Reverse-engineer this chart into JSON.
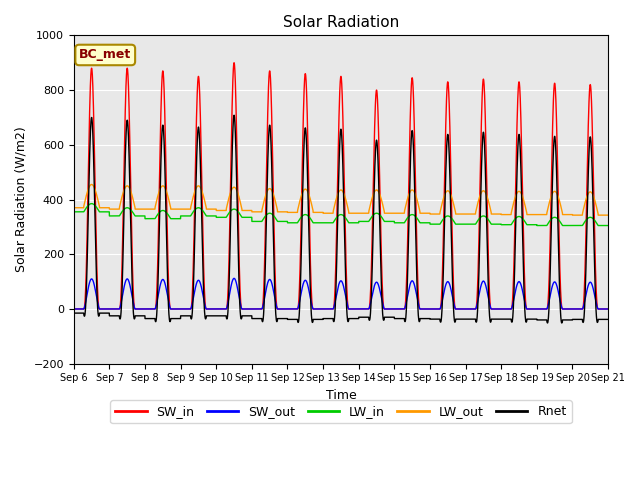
{
  "title": "Solar Radiation",
  "xlabel": "Time",
  "ylabel": "Solar Radiation (W/m2)",
  "ylim": [
    -200,
    1000
  ],
  "annotation": "BC_met",
  "legend": [
    "SW_in",
    "SW_out",
    "LW_in",
    "LW_out",
    "Rnet"
  ],
  "colors": {
    "SW_in": "#ff0000",
    "SW_out": "#0000ff",
    "LW_in": "#00cc00",
    "LW_out": "#ff9900",
    "Rnet": "#000000"
  },
  "background_color": "#e8e8e8",
  "n_days": 15,
  "start_day": 6,
  "figsize": [
    6.4,
    4.8
  ],
  "dpi": 100
}
